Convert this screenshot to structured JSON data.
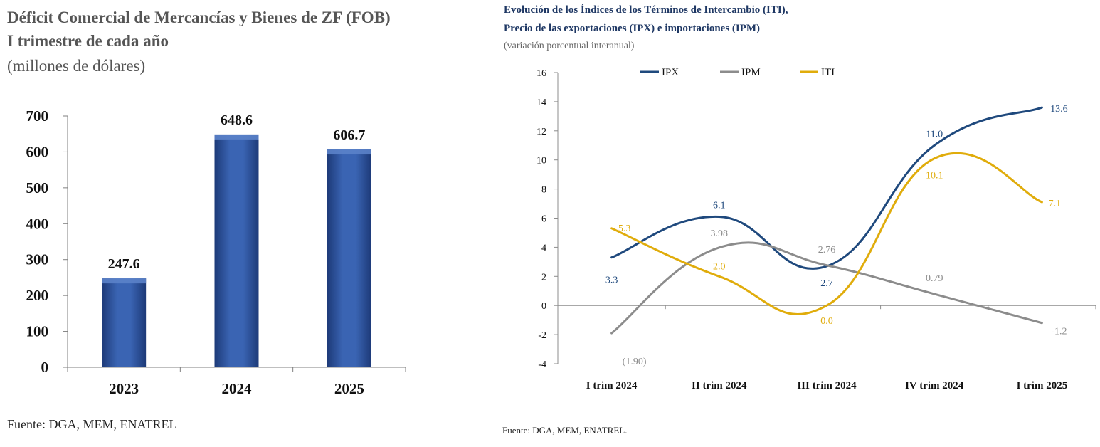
{
  "left_chart": {
    "title_line1": "Déficit Comercial de Mercancías y Bienes de ZF (FOB)",
    "title_line2": "I trimestre de cada año",
    "subtitle": "(millones de dólares)",
    "source": "Fuente: DGA, MEM, ENATREL"
  },
  "right_chart": {
    "title_line1": "Evolución de los Índices de los Términos de Intercambio (ITI),",
    "title_line2": "Precio de las exportaciones (IPX) e importaciones (IPM)",
    "subtitle": "(variación porcentual interanual)",
    "source": "Fuente: DGA, MEM, ENATREL."
  },
  "chart_data": [
    {
      "type": "bar",
      "title": "Déficit Comercial de Mercancías y Bienes de ZF (FOB) I trimestre de cada año",
      "subtitle": "(millones de dólares)",
      "categories": [
        "2023",
        "2024",
        "2025"
      ],
      "values": [
        247.6,
        648.6,
        606.7
      ],
      "data_labels": [
        "247.6",
        "648.6",
        "606.7"
      ],
      "ylim": [
        0,
        700
      ],
      "yticks": [
        "0",
        "100",
        "200",
        "300",
        "400",
        "500",
        "600",
        "700"
      ],
      "grid": false,
      "colors": {
        "bar": "#2f57a3",
        "bar_top": "#5b82c9"
      }
    },
    {
      "type": "line",
      "title": "Evolución de los Índices de los Términos de Intercambio (ITI), Precio de las exportaciones (IPX) e importaciones (IPM)",
      "subtitle": "(variación porcentual interanual)",
      "categories": [
        "I trim 2024",
        "II trim 2024",
        "III trim 2024",
        "IV trim 2024",
        "I trim 2025"
      ],
      "ylim": [
        -4,
        16
      ],
      "yticks": [
        "-4",
        "-2",
        "0",
        "2",
        "4",
        "6",
        "8",
        "10",
        "12",
        "14",
        "16"
      ],
      "grid": false,
      "legend_position": "top",
      "series": [
        {
          "name": "IPX",
          "values": [
            3.3,
            6.1,
            2.7,
            11.0,
            13.6
          ],
          "labels": [
            "3.3",
            "6.1",
            "2.7",
            "11.0",
            "13.6"
          ],
          "color": "#1f497d"
        },
        {
          "name": "IPM",
          "values": [
            -1.9,
            3.98,
            2.76,
            0.79,
            -1.2
          ],
          "labels": [
            "(1.90)",
            "3.98",
            "2.76",
            "0.79",
            "-1.2"
          ],
          "color": "#8c8c8c"
        },
        {
          "name": "ITI",
          "values": [
            5.3,
            2.0,
            0.0,
            10.1,
            7.1
          ],
          "labels": [
            "5.3",
            "2.0",
            "0.0",
            "10.1",
            "7.1"
          ],
          "color": "#e0ac0b"
        }
      ]
    }
  ]
}
